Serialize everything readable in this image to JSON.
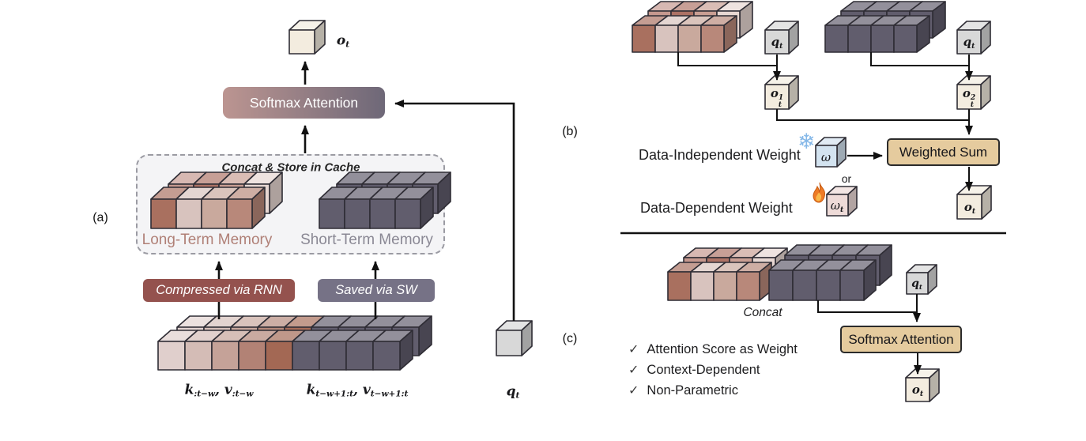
{
  "panels": {
    "a": {
      "label": "(a)",
      "output_cube": {
        "base": "o",
        "sub": "t"
      },
      "softmax_box": "Softmax Attention",
      "cache_box_title": "Concat & Store in Cache",
      "long_term_label": "Long-Term Memory",
      "short_term_label": "Short-Term Memory",
      "banner_rnn": "Compressed via RNN",
      "banner_sw": "Saved via SW",
      "kv_left": {
        "k": "k",
        "k_sub": ":t−w",
        "sep": ", ",
        "v": "v",
        "v_sub": ":t−w"
      },
      "kv_right": {
        "k": "k",
        "k_sub": "t−w+1:t",
        "sep": ", ",
        "v": "v",
        "v_sub": "t−w+1:t"
      },
      "query_cube": {
        "base": "q",
        "sub": "t"
      }
    },
    "b": {
      "label": "(b)",
      "q1": {
        "base": "q",
        "sub": "t"
      },
      "q2": {
        "base": "q",
        "sub": "t"
      },
      "o1": {
        "base": "o",
        "sup": "1",
        "sub": "t"
      },
      "o2": {
        "base": "o",
        "sup": "2",
        "sub": "t"
      },
      "weighted_sum_box": "Weighted Sum",
      "data_independent_label": "Data-Independent Weight",
      "data_dependent_label": "Data-Dependent Weight",
      "or_label": "or",
      "omega": {
        "base": "ω"
      },
      "omega_t": {
        "base": "ω",
        "sub": "t"
      },
      "output_cube": {
        "base": "o",
        "sub": "t"
      }
    },
    "c": {
      "label": "(c)",
      "concat_label": "Concat",
      "query_cube": {
        "base": "q",
        "sub": "t"
      },
      "softmax_box": "Softmax Attention",
      "output_cube": {
        "base": "o",
        "sub": "t"
      },
      "checklist": [
        {
          "mark": "✓",
          "text": "Attention Score as Weight"
        },
        {
          "mark": "✓",
          "text": "Context-Dependent"
        },
        {
          "mark": "✓",
          "text": "Non-Parametric"
        }
      ]
    }
  },
  "icons": {
    "snowflake": "❄",
    "flame": "flame-icon",
    "checkmark": "✓"
  },
  "colors": {
    "banner_red": "#94524e",
    "banner_slate": "#767286",
    "gradient_left": "#bc9591",
    "gradient_right": "#6e6878",
    "tan_box": "#e5cb9e",
    "long_term_text": "#b08077",
    "short_term_text": "#8a8894",
    "dark_cube": "#615d6d",
    "cream_cube": "#f3ecdf",
    "grey_cube": "#d8d8d8",
    "blue_cube": "#d3e3f0",
    "pink_cube": "#eedbd8",
    "snowflake": "#85b8e8",
    "flame_outer": "#ee7b25",
    "flame_inner": "#f9b84a",
    "memory_front": [
      "#a9705f",
      "#d8c3be",
      "#c9a99d",
      "#b8887a"
    ],
    "memory_back": [
      "#c5988e",
      "#ad7265",
      "#c99e93",
      "#e7d7d2"
    ],
    "sequence_front": [
      "#e0cfcc",
      "#d4bcb6",
      "#c5a298",
      "#b28275",
      "#a36854",
      "#615d6d",
      "#615d6d",
      "#615d6d",
      "#615d6d"
    ],
    "sequence_back": [
      "#e3d4d1",
      "#d7c0ba",
      "#c8a79d",
      "#b5897b",
      "#a76c58",
      "#615d6d",
      "#615d6d",
      "#615d6d",
      "#615d6d"
    ]
  }
}
